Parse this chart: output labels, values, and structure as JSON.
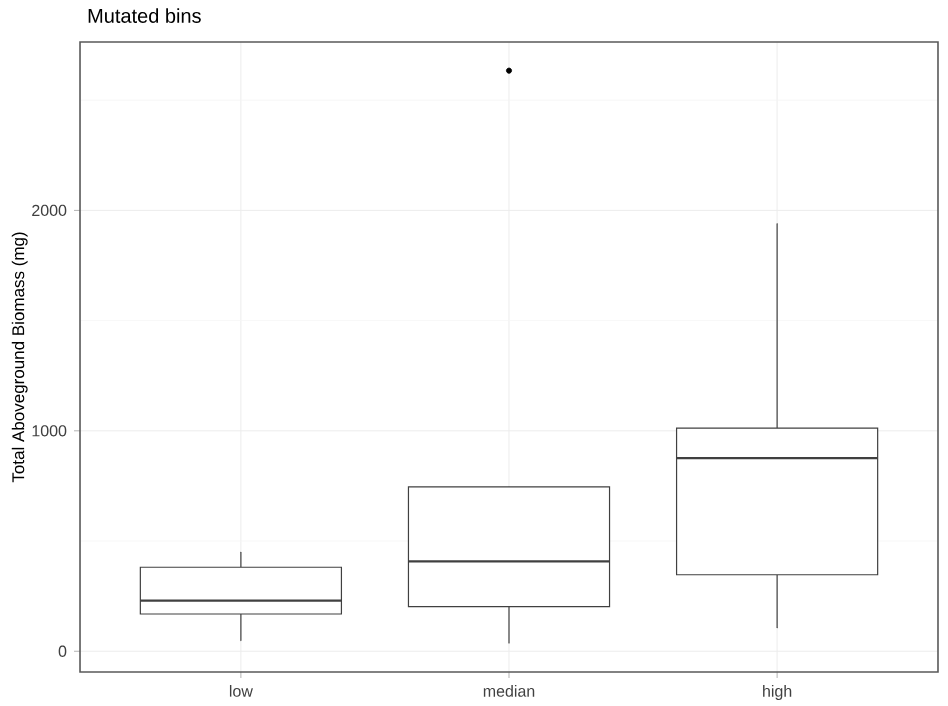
{
  "chart_data": {
    "type": "box",
    "title": "Mutated bins",
    "ylabel": "Total Aboveground Biomass (mg)",
    "categories": [
      "low",
      "median",
      "high"
    ],
    "boxes": [
      {
        "low": 48,
        "q1": 169,
        "median": 230,
        "q3": 381,
        "high": 450
      },
      {
        "low": 36,
        "q1": 202,
        "median": 408,
        "q3": 746,
        "high": 746,
        "outliers": [
          2634
        ]
      },
      {
        "low": 106,
        "q1": 347,
        "median": 876,
        "q3": 1012,
        "high": 1940
      }
    ],
    "ylim": [
      -94,
      2764
    ],
    "yticks": [
      0,
      1000,
      2000
    ],
    "grid": true
  }
}
